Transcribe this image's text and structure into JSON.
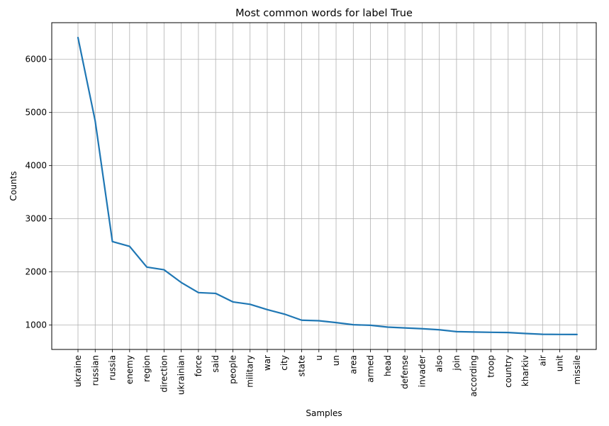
{
  "chart_data": {
    "type": "line",
    "title": "Most common words for label True",
    "xlabel": "Samples",
    "ylabel": "Counts",
    "grid": true,
    "ylim": [
      540,
      6690
    ],
    "yticks": [
      1000,
      2000,
      3000,
      4000,
      5000,
      6000
    ],
    "yticklabels": [
      "1000",
      "2000",
      "3000",
      "4000",
      "5000",
      "6000"
    ],
    "categories": [
      "ukraine",
      "russian",
      "russia",
      "enemy",
      "region",
      "direction",
      "ukrainian",
      "force",
      "said",
      "people",
      "military",
      "war",
      "city",
      "state",
      "u",
      "un",
      "area",
      "armed",
      "head",
      "defense",
      "invader",
      "also",
      "join",
      "according",
      "troop",
      "country",
      "kharkiv",
      "air",
      "unit",
      "missile"
    ],
    "values": [
      6410,
      4840,
      2570,
      2480,
      2090,
      2040,
      1800,
      1610,
      1595,
      1435,
      1390,
      1290,
      1205,
      1090,
      1080,
      1045,
      1005,
      995,
      960,
      945,
      930,
      910,
      875,
      868,
      863,
      858,
      840,
      825,
      823,
      822
    ],
    "series_color": "#1f77b4",
    "grid_color": "#b0b0b0"
  }
}
